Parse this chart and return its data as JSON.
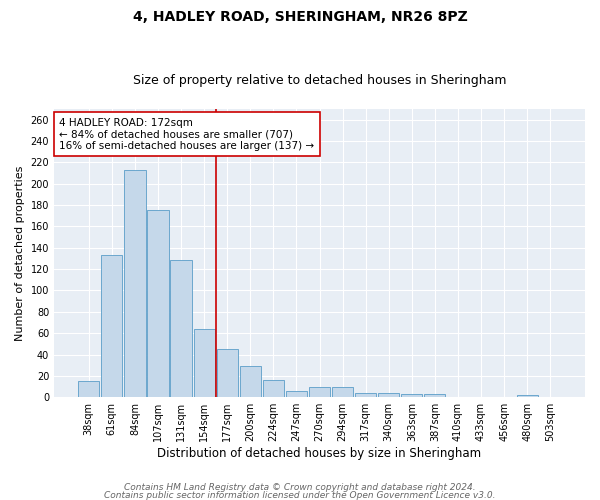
{
  "title_line1": "4, HADLEY ROAD, SHERINGHAM, NR26 8PZ",
  "title_line2": "Size of property relative to detached houses in Sheringham",
  "xlabel": "Distribution of detached houses by size in Sheringham",
  "ylabel": "Number of detached properties",
  "categories": [
    "38sqm",
    "61sqm",
    "84sqm",
    "107sqm",
    "131sqm",
    "154sqm",
    "177sqm",
    "200sqm",
    "224sqm",
    "247sqm",
    "270sqm",
    "294sqm",
    "317sqm",
    "340sqm",
    "363sqm",
    "387sqm",
    "410sqm",
    "433sqm",
    "456sqm",
    "480sqm",
    "503sqm"
  ],
  "values": [
    15,
    133,
    213,
    175,
    129,
    64,
    45,
    29,
    16,
    6,
    10,
    10,
    4,
    4,
    3,
    3,
    0,
    0,
    0,
    2,
    0
  ],
  "bar_color": "#c5d8ea",
  "bar_edge_color": "#5a9dc8",
  "vline_x_index": 6,
  "vline_color": "#cc0000",
  "annotation_text": "4 HADLEY ROAD: 172sqm\n← 84% of detached houses are smaller (707)\n16% of semi-detached houses are larger (137) →",
  "annotation_box_color": "white",
  "annotation_box_edge_color": "#cc0000",
  "ylim": [
    0,
    270
  ],
  "yticks": [
    0,
    20,
    40,
    60,
    80,
    100,
    120,
    140,
    160,
    180,
    200,
    220,
    240,
    260
  ],
  "background_color": "#e8eef5",
  "footer_line1": "Contains HM Land Registry data © Crown copyright and database right 2024.",
  "footer_line2": "Contains public sector information licensed under the Open Government Licence v3.0.",
  "title_fontsize": 10,
  "subtitle_fontsize": 9,
  "tick_fontsize": 7,
  "xlabel_fontsize": 8.5,
  "ylabel_fontsize": 8,
  "footer_fontsize": 6.5,
  "annotation_fontsize": 7.5
}
